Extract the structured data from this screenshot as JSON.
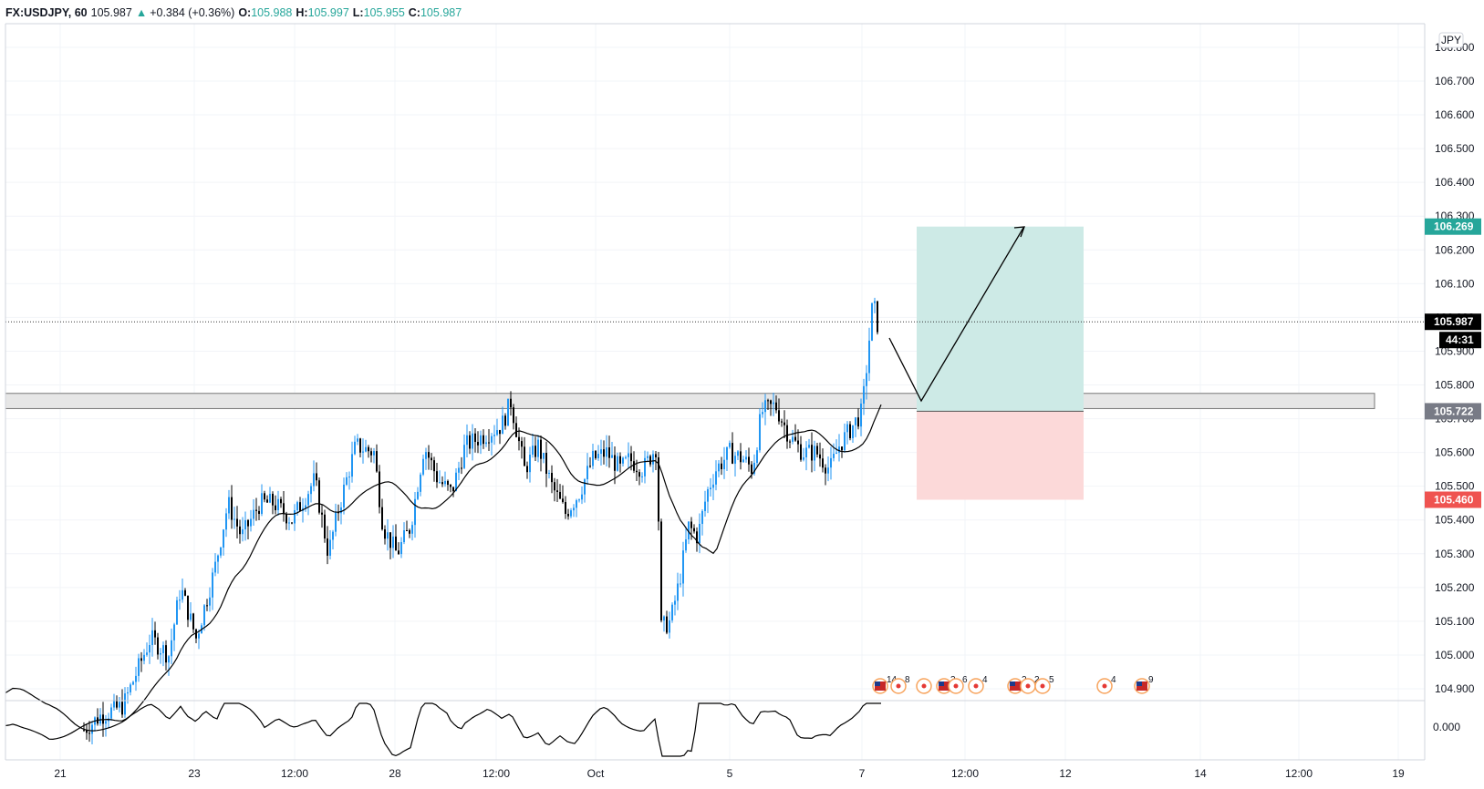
{
  "header": {
    "symbol": "FX:USDJPY, 60",
    "last": "105.987",
    "change_arrow": "▲",
    "change": "+0.384 (+0.36%)",
    "o_label": "O:",
    "o_value": "105.988",
    "h_label": "H:",
    "h_value": "105.997",
    "l_label": "L:",
    "l_value": "105.955",
    "c_label": "C:",
    "c_value": "105.987"
  },
  "currency_badge": "JPY",
  "price_axis": {
    "ticks": [
      "106.800",
      "106.700",
      "106.600",
      "106.500",
      "106.400",
      "106.300",
      "106.200",
      "106.100",
      "106.000",
      "105.900",
      "105.800",
      "105.700",
      "105.600",
      "105.500",
      "105.400",
      "105.300",
      "105.200",
      "105.100",
      "105.000",
      "104.900"
    ],
    "tick_values": [
      106.8,
      106.7,
      106.6,
      106.5,
      106.4,
      106.3,
      106.2,
      106.1,
      106.0,
      105.9,
      105.8,
      105.7,
      105.6,
      105.5,
      105.4,
      105.3,
      105.2,
      105.1,
      105.0,
      104.9
    ],
    "range": [
      104.865,
      106.87
    ]
  },
  "price_tags": {
    "target": {
      "label": "106.269",
      "value": 106.269,
      "color": "#26a69a"
    },
    "current": {
      "label": "105.987",
      "value": 105.987,
      "color": "#000000"
    },
    "countdown": {
      "label": "44:31",
      "color": "#000000"
    },
    "entry": {
      "label": "105.722",
      "value": 105.722,
      "color": "#787b86"
    },
    "stop": {
      "label": "105.460",
      "value": 105.46,
      "color": "#ef5350"
    }
  },
  "zone": {
    "top": 105.775,
    "bottom": 105.73
  },
  "oscillator_axis": {
    "label": "0.000",
    "value": 0.0
  },
  "time_axis": {
    "labels": [
      "21",
      "23",
      "12:00",
      "28",
      "12:00",
      "Oct",
      "5",
      "7",
      "12:00",
      "12",
      "14",
      "12:00",
      "19"
    ]
  },
  "events": [
    {
      "label": "14",
      "flag": true
    },
    {
      "label": "8",
      "flag": false
    },
    {
      "label": "",
      "flag": false
    },
    {
      "label": "3",
      "flag": true
    },
    {
      "label": "6",
      "flag": false
    },
    {
      "label": "4",
      "flag": false
    },
    {
      "label": "2",
      "flag": true
    },
    {
      "label": "2",
      "flag": false
    },
    {
      "label": "5",
      "flag": false
    },
    {
      "label": "4",
      "flag": false
    },
    {
      "label": "9",
      "flag": true
    }
  ],
  "colors": {
    "bull": "#2196f3",
    "bear": "#000000",
    "target_fill": "#cdeae6",
    "stop_fill": "#fcd9d9",
    "grid": "#f0f3fa",
    "border": "#d1d4dc"
  }
}
